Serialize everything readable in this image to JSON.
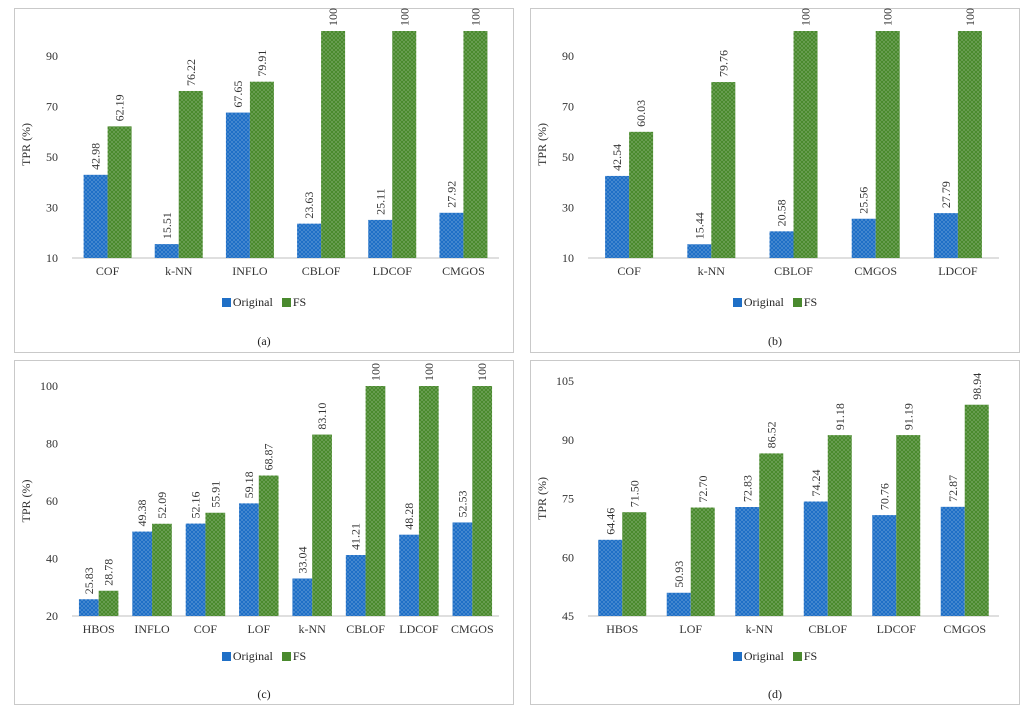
{
  "colors": {
    "original": "#1f6fc6",
    "fs": "#4a8a2e",
    "axis": "#bfbfbf",
    "grid": "#e0e0e0"
  },
  "legend": {
    "original": "Original",
    "fs": "FS"
  },
  "chart_data": [
    {
      "type": "bar",
      "caption": "(a)",
      "ylabel": "TPR (%)",
      "ylim": [
        10,
        100
      ],
      "yticks": [
        10,
        30,
        50,
        70,
        90
      ],
      "categories": [
        "COF",
        "k-NN",
        "INFLO",
        "CBLOF",
        "LDCOF",
        "CMGOS"
      ],
      "series": [
        {
          "name": "Original",
          "values": [
            42.98,
            15.51,
            67.65,
            23.63,
            25.11,
            27.92
          ],
          "labels": [
            "42.98",
            "15.51",
            "67.65",
            "23.63",
            "25.11",
            "27.92"
          ]
        },
        {
          "name": "FS",
          "values": [
            62.19,
            76.22,
            79.91,
            100,
            100,
            100
          ],
          "labels": [
            "62.19",
            "76.22",
            "79.91",
            "100",
            "100",
            "100"
          ]
        }
      ]
    },
    {
      "type": "bar",
      "caption": "(b)",
      "ylabel": "TPR (%)",
      "ylim": [
        10,
        100
      ],
      "yticks": [
        10,
        30,
        50,
        70,
        90
      ],
      "categories": [
        "COF",
        "k-NN",
        "CBLOF",
        "CMGOS",
        "LDCOF"
      ],
      "series": [
        {
          "name": "Original",
          "values": [
            42.54,
            15.44,
            20.58,
            25.56,
            27.79
          ],
          "labels": [
            "42.54",
            "15.44",
            "20.58",
            "25.56",
            "27.79"
          ]
        },
        {
          "name": "FS",
          "values": [
            60.03,
            79.76,
            100,
            100,
            100
          ],
          "labels": [
            "60.03",
            "79.76",
            "100",
            "100",
            "100"
          ]
        }
      ]
    },
    {
      "type": "bar",
      "caption": "(c)",
      "ylabel": "TPR (%)",
      "ylim": [
        20,
        100
      ],
      "yticks": [
        20,
        40,
        60,
        80,
        100
      ],
      "categories": [
        "HBOS",
        "INFLO",
        "COF",
        "LOF",
        "k-NN",
        "CBLOF",
        "LDCOF",
        "CMGOS"
      ],
      "series": [
        {
          "name": "Original",
          "values": [
            25.83,
            49.38,
            52.16,
            59.18,
            33.04,
            41.21,
            48.28,
            52.53
          ],
          "labels": [
            "25.83",
            "49.38",
            "52.16",
            "59.18",
            "33.04",
            "41.21",
            "48.28",
            "52.53"
          ]
        },
        {
          "name": "FS",
          "values": [
            28.78,
            52.09,
            55.91,
            68.87,
            83.1,
            100,
            100,
            100
          ],
          "labels": [
            "28.78",
            "52.09",
            "55.91",
            "68.87",
            "83.10",
            "100",
            "100",
            "100"
          ]
        }
      ]
    },
    {
      "type": "bar",
      "caption": "(d)",
      "ylabel": "TPR (%)",
      "ylim": [
        45,
        105
      ],
      "yticks": [
        45,
        60,
        75,
        90,
        105
      ],
      "categories": [
        "HBOS",
        "LOF",
        "k-NN",
        "CBLOF",
        "LDCOF",
        "CMGOS"
      ],
      "series": [
        {
          "name": "Original",
          "values": [
            64.46,
            50.93,
            72.83,
            74.24,
            70.76,
            72.87
          ],
          "labels": [
            "64.46",
            "50.93",
            "72.83",
            "74.24",
            "70.76",
            "72.87"
          ]
        },
        {
          "name": "FS",
          "values": [
            71.5,
            72.7,
            86.52,
            91.18,
            91.19,
            98.94
          ],
          "labels": [
            "71.50",
            "72.70",
            "86.52",
            "91.18",
            "91.19",
            "98.94"
          ]
        }
      ]
    }
  ]
}
